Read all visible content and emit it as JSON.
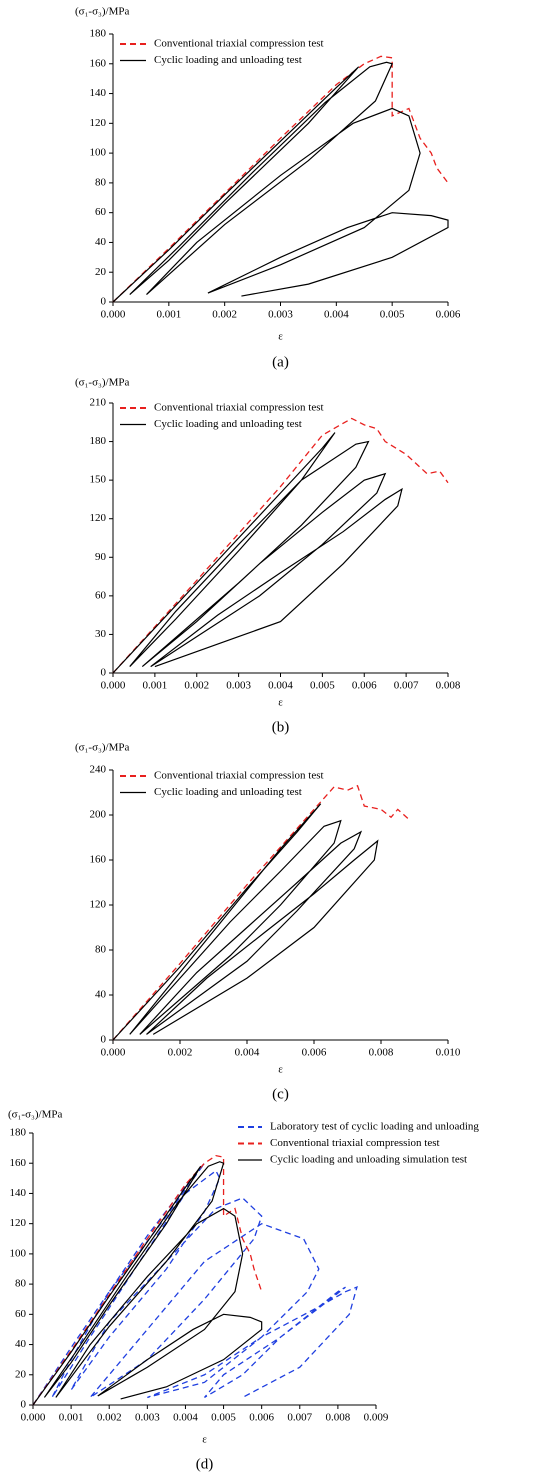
{
  "chart_data": [
    {
      "type": "line",
      "y_label": "(σ₁-σ₃)/MPa",
      "x_label": "ε",
      "caption": "(a)",
      "xlim": [
        0,
        0.006
      ],
      "ylim": [
        0,
        180
      ],
      "xticks": [
        {
          "value": 0,
          "label": "0.000"
        },
        {
          "value": 0.001,
          "label": "0.001"
        },
        {
          "value": 0.002,
          "label": "0.002"
        },
        {
          "value": 0.003,
          "label": "0.003"
        },
        {
          "value": 0.004,
          "label": "0.004"
        },
        {
          "value": 0.005,
          "label": "0.005"
        },
        {
          "value": 0.006,
          "label": "0.006"
        }
      ],
      "yticks": [
        0,
        20,
        40,
        60,
        80,
        100,
        120,
        140,
        160,
        180
      ],
      "series": [
        {
          "name": "Conventional triaxial compression test",
          "color": "#e8201e",
          "dashed": true,
          "x": [
            0,
            0.001,
            0.002,
            0.003,
            0.004,
            0.0045,
            0.0048,
            0.005,
            0.005,
            0.0053,
            0.0055,
            0.0057,
            0.0058,
            0.006
          ],
          "values": [
            0,
            36,
            73,
            110,
            146,
            160,
            165,
            164,
            125,
            130,
            110,
            100,
            90,
            80
          ]
        },
        {
          "name": "Cyclic loading and unloading test",
          "color": "#000000",
          "dashed": false,
          "x": [
            0,
            0.001,
            0.002,
            0.003,
            0.004,
            0.0044,
            0.0035,
            0.002,
            0.001,
            0.0003,
            0.0012,
            0.0025,
            0.0038,
            0.0046,
            0.0049,
            0.005,
            0.0047,
            0.0035,
            0.002,
            0.0006,
            0.0015,
            0.003,
            0.0043,
            0.005,
            0.0053,
            0.0055,
            0.0053,
            0.0045,
            0.003,
            0.0017,
            0.003,
            0.0042,
            0.005,
            0.0057,
            0.006,
            0.006,
            0.005,
            0.0035,
            0.0023
          ],
          "values": [
            0,
            35,
            72,
            108,
            144,
            158,
            120,
            66,
            28,
            5,
            38,
            87,
            134,
            158,
            161,
            160,
            135,
            95,
            52,
            5,
            40,
            85,
            120,
            130,
            125,
            100,
            75,
            50,
            25,
            6,
            30,
            50,
            60,
            58,
            55,
            50,
            30,
            12,
            4
          ]
        }
      ]
    },
    {
      "type": "line",
      "y_label": "(σ₁-σ₃)/MPa",
      "x_label": "ε",
      "caption": "(b)",
      "xlim": [
        0,
        0.008
      ],
      "ylim": [
        0,
        210
      ],
      "xticks": [
        {
          "value": 0,
          "label": "0.000"
        },
        {
          "value": 0.001,
          "label": "0.001"
        },
        {
          "value": 0.002,
          "label": "0.002"
        },
        {
          "value": 0.003,
          "label": "0.003"
        },
        {
          "value": 0.004,
          "label": "0.004"
        },
        {
          "value": 0.005,
          "label": "0.005"
        },
        {
          "value": 0.006,
          "label": "0.006"
        },
        {
          "value": 0.007,
          "label": "0.007"
        },
        {
          "value": 0.008,
          "label": "0.008"
        }
      ],
      "yticks": [
        0,
        30,
        60,
        90,
        120,
        150,
        180,
        210
      ],
      "series": [
        {
          "name": "Conventional triaxial compression test",
          "color": "#e8201e",
          "dashed": true,
          "x": [
            0,
            0.002,
            0.004,
            0.005,
            0.0057,
            0.006,
            0.0063,
            0.0065,
            0.007,
            0.0075,
            0.0078,
            0.008
          ],
          "values": [
            0,
            72,
            145,
            185,
            198,
            193,
            190,
            180,
            170,
            155,
            157,
            148
          ]
        },
        {
          "name": "Cyclic loading and unloading test",
          "color": "#000000",
          "dashed": false,
          "x": [
            0,
            0.002,
            0.004,
            0.005,
            0.0053,
            0.0045,
            0.003,
            0.0015,
            0.0004,
            0.0015,
            0.003,
            0.0045,
            0.0058,
            0.0061,
            0.0058,
            0.0045,
            0.003,
            0.0007,
            0.002,
            0.0035,
            0.005,
            0.006,
            0.0065,
            0.0063,
            0.005,
            0.0035,
            0.0009,
            0.0025,
            0.004,
            0.0055,
            0.0065,
            0.0069,
            0.0068,
            0.0055,
            0.004,
            0.001
          ],
          "values": [
            0,
            70,
            140,
            175,
            187,
            150,
            95,
            42,
            5,
            48,
            100,
            150,
            178,
            180,
            160,
            115,
            70,
            5,
            40,
            85,
            125,
            150,
            155,
            140,
            100,
            60,
            5,
            45,
            78,
            110,
            135,
            143,
            130,
            85,
            40,
            5
          ]
        }
      ]
    },
    {
      "type": "line",
      "y_label": "(σ₁-σ₃)/MPa",
      "x_label": "ε",
      "caption": "(c)",
      "xlim": [
        0,
        0.01
      ],
      "ylim": [
        0,
        240
      ],
      "xticks": [
        {
          "value": 0,
          "label": "0.000"
        },
        {
          "value": 0.002,
          "label": "0.002"
        },
        {
          "value": 0.004,
          "label": "0.004"
        },
        {
          "value": 0.006,
          "label": "0.006"
        },
        {
          "value": 0.008,
          "label": "0.008"
        },
        {
          "value": 0.01,
          "label": "0.010"
        }
      ],
      "yticks": [
        0,
        40,
        80,
        120,
        160,
        200,
        240
      ],
      "series": [
        {
          "name": "Conventional triaxial compression test",
          "color": "#e8201e",
          "dashed": true,
          "x": [
            0,
            0.002,
            0.004,
            0.006,
            0.0066,
            0.007,
            0.0073,
            0.0075,
            0.008,
            0.0083,
            0.0085,
            0.0088
          ],
          "values": [
            0,
            68,
            138,
            205,
            225,
            222,
            226,
            208,
            205,
            198,
            205,
            197
          ]
        },
        {
          "name": "Cyclic loading and unloading test",
          "color": "#000000",
          "dashed": false,
          "x": [
            0,
            0.002,
            0.004,
            0.0055,
            0.0062,
            0.005,
            0.0035,
            0.002,
            0.0005,
            0.002,
            0.0035,
            0.005,
            0.0063,
            0.0068,
            0.0066,
            0.005,
            0.0035,
            0.0008,
            0.0025,
            0.004,
            0.0055,
            0.0068,
            0.0074,
            0.0072,
            0.0055,
            0.004,
            0.001,
            0.0028,
            0.0045,
            0.006,
            0.0072,
            0.0079,
            0.0078,
            0.006,
            0.004,
            0.0012
          ],
          "values": [
            0,
            65,
            135,
            185,
            210,
            170,
            115,
            60,
            5,
            55,
            105,
            150,
            190,
            195,
            175,
            120,
            75,
            5,
            60,
            100,
            140,
            175,
            185,
            170,
            115,
            70,
            5,
            55,
            95,
            130,
            160,
            177,
            160,
            100,
            55,
            5
          ]
        }
      ]
    },
    {
      "type": "line",
      "y_label": "(σ₁-σ₃)/MPa",
      "x_label": "ε",
      "caption": "(d)",
      "xlim": [
        0,
        0.009
      ],
      "ylim": [
        0,
        180
      ],
      "xticks": [
        {
          "value": 0,
          "label": "0.000"
        },
        {
          "value": 0.001,
          "label": "0.001"
        },
        {
          "value": 0.002,
          "label": "0.002"
        },
        {
          "value": 0.003,
          "label": "0.003"
        },
        {
          "value": 0.004,
          "label": "0.004"
        },
        {
          "value": 0.005,
          "label": "0.005"
        },
        {
          "value": 0.006,
          "label": "0.006"
        },
        {
          "value": 0.007,
          "label": "0.007"
        },
        {
          "value": 0.008,
          "label": "0.008"
        },
        {
          "value": 0.009,
          "label": "0.009"
        }
      ],
      "yticks": [
        0,
        20,
        40,
        60,
        80,
        100,
        120,
        140,
        160,
        180
      ],
      "series": [
        {
          "name": "Laboratory test of cyclic loading and unloading",
          "color": "#1f3fe0",
          "dashed": true,
          "x": [
            0,
            0.001,
            0.002,
            0.003,
            0.004,
            0.0045,
            0.0035,
            0.002,
            0.001,
            0.0005,
            0.0015,
            0.0028,
            0.004,
            0.0048,
            0.0049,
            0.0045,
            0.0035,
            0.002,
            0.001,
            0.002,
            0.0035,
            0.0048,
            0.0055,
            0.006,
            0.0058,
            0.0045,
            0.003,
            0.0015,
            0.003,
            0.0045,
            0.006,
            0.0071,
            0.0075,
            0.0072,
            0.006,
            0.0045,
            0.003,
            0.0045,
            0.006,
            0.0075,
            0.008,
            0.0082,
            0.0078,
            0.0065,
            0.005,
            0.0045,
            0.0055,
            0.0065,
            0.0075,
            0.0082,
            0.0085,
            0.0083,
            0.007,
            0.0055
          ],
          "values": [
            0,
            38,
            75,
            112,
            145,
            160,
            125,
            75,
            30,
            5,
            45,
            95,
            140,
            155,
            150,
            128,
            90,
            45,
            10,
            55,
            95,
            130,
            137,
            125,
            110,
            70,
            30,
            5,
            50,
            95,
            120,
            110,
            90,
            75,
            45,
            20,
            5,
            15,
            45,
            65,
            75,
            78,
            70,
            45,
            20,
            5,
            20,
            45,
            65,
            75,
            78,
            60,
            25,
            5
          ]
        },
        {
          "name": "Conventional triaxial compression test",
          "color": "#e8201e",
          "dashed": true,
          "x": [
            0,
            0.001,
            0.002,
            0.003,
            0.004,
            0.0045,
            0.0048,
            0.005,
            0.005,
            0.0053,
            0.0055,
            0.0057,
            0.0058,
            0.006
          ],
          "values": [
            0,
            36,
            73,
            110,
            146,
            160,
            165,
            164,
            125,
            130,
            110,
            100,
            90,
            75
          ]
        },
        {
          "name": "Cyclic loading and unloading simulation test",
          "color": "#000000",
          "dashed": false,
          "x": [
            0,
            0.001,
            0.002,
            0.003,
            0.004,
            0.0044,
            0.0035,
            0.002,
            0.001,
            0.0003,
            0.0012,
            0.0025,
            0.0038,
            0.0046,
            0.0049,
            0.005,
            0.0047,
            0.0035,
            0.002,
            0.0006,
            0.0015,
            0.003,
            0.0043,
            0.005,
            0.0053,
            0.0055,
            0.0053,
            0.0045,
            0.003,
            0.0017,
            0.003,
            0.0042,
            0.005,
            0.0057,
            0.006,
            0.006,
            0.005,
            0.0035,
            0.0023
          ],
          "values": [
            0,
            35,
            72,
            108,
            144,
            158,
            120,
            66,
            28,
            5,
            38,
            87,
            134,
            158,
            161,
            160,
            135,
            95,
            52,
            5,
            40,
            85,
            120,
            130,
            125,
            100,
            75,
            50,
            25,
            6,
            30,
            50,
            60,
            58,
            55,
            50,
            30,
            12,
            4
          ]
        }
      ]
    }
  ]
}
